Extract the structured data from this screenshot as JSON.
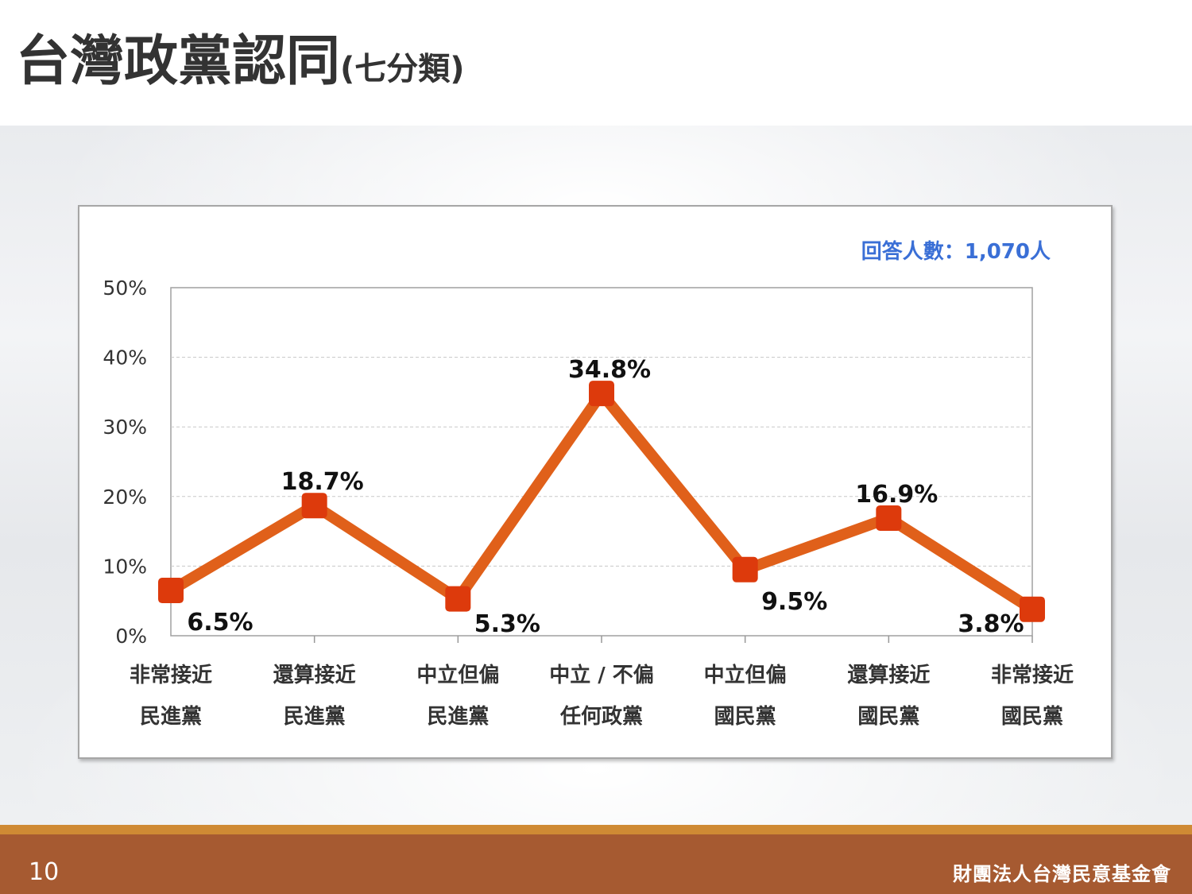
{
  "slide": {
    "title_main": "台灣政黨認同",
    "title_sub": "(七分類)",
    "page_number": "10",
    "organization": "財團法人台灣民意基金會"
  },
  "chart_data": {
    "type": "line",
    "title": "",
    "xlabel": "",
    "ylabel": "",
    "annotation": "回答人數：1,070人",
    "categories": [
      [
        "非常接近",
        "民進黨"
      ],
      [
        "還算接近",
        "民進黨"
      ],
      [
        "中立但偏",
        "民進黨"
      ],
      [
        "中立 / 不偏",
        "任何政黨"
      ],
      [
        "中立但偏",
        "國民黨"
      ],
      [
        "還算接近",
        "國民黨"
      ],
      [
        "非常接近",
        "國民黨"
      ]
    ],
    "values": [
      6.5,
      18.7,
      5.3,
      34.8,
      9.5,
      16.9,
      3.8
    ],
    "data_labels": [
      "6.5%",
      "18.7%",
      "5.3%",
      "34.8%",
      "9.5%",
      "16.9%",
      "3.8%"
    ],
    "yticks": [
      "0%",
      "10%",
      "20%",
      "30%",
      "40%",
      "50%"
    ],
    "ylim": [
      0,
      50
    ],
    "grid": true,
    "legend": "none",
    "colors": {
      "line": "#e0601a",
      "marker": "#dd3a0c",
      "annotation": "#3a6fd6"
    }
  }
}
